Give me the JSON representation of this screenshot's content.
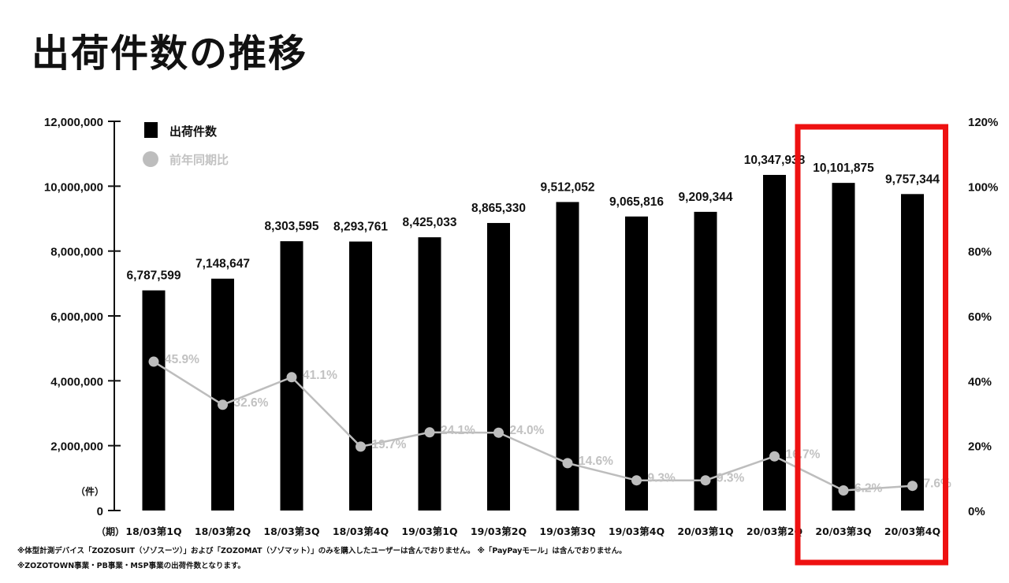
{
  "page": {
    "title": "出荷件数の推移",
    "notes": [
      "※体型計測デバイス「ZOZOSUIT（ゾゾスーツ）」および「ZOZOMAT（ゾゾマット）」のみを購入したユーザーは含んでおりません。 ※「PayPayモール」は含んでおりません。",
      "※ZOZOTOWN事業・PB事業・MSP事業の出荷件数となります。"
    ]
  },
  "chart_data": {
    "type": "bar",
    "title": "出荷件数の推移",
    "categories": [
      "18/03第1Q",
      "18/03第2Q",
      "18/03第3Q",
      "18/03第4Q",
      "19/03第1Q",
      "19/03第2Q",
      "19/03第3Q",
      "19/03第4Q",
      "20/03第1Q",
      "20/03第2Q",
      "20/03第3Q",
      "20/03第4Q"
    ],
    "series": [
      {
        "name": "出荷件数",
        "type": "bar",
        "axis": "left",
        "color": "#000000",
        "values": [
          6787599,
          7148647,
          8303595,
          8293761,
          8425033,
          8865330,
          9512052,
          9065816,
          9209344,
          10347938,
          10101875,
          9757344
        ],
        "labels": [
          "6,787,599",
          "7,148,647",
          "8,303,595",
          "8,293,761",
          "8,425,033",
          "8,865,330",
          "9,512,052",
          "9,065,816",
          "9,209,344",
          "10,347,938",
          "10,101,875",
          "9,757,344"
        ]
      },
      {
        "name": "前年同期比",
        "type": "line",
        "axis": "right",
        "color": "#bdbdbd",
        "values": [
          45.9,
          32.6,
          41.1,
          19.7,
          24.1,
          24.0,
          14.6,
          9.3,
          9.3,
          16.7,
          6.2,
          7.6
        ],
        "labels": [
          "45.9%",
          "32.6%",
          "41.1%",
          "19.7%",
          "24.1%",
          "24.0%",
          "14.6%",
          "9.3%",
          "9.3%",
          "16.7%",
          "6.2%",
          "7.6%"
        ]
      }
    ],
    "y_left": {
      "ylim": [
        0,
        12000000
      ],
      "ticks": [
        "0",
        "2,000,000",
        "4,000,000",
        "6,000,000",
        "8,000,000",
        "10,000,000",
        "12,000,000"
      ],
      "unit_label": "（件）"
    },
    "y_right": {
      "ylim": [
        0,
        120
      ],
      "ticks": [
        "0%",
        "20%",
        "40%",
        "60%",
        "80%",
        "100%",
        "120%"
      ]
    },
    "x_unit_label": "（期）",
    "legend": {
      "position": "top-left"
    },
    "highlight": {
      "from": "20/03第3Q",
      "to": "20/03第4Q",
      "color": "#ee1111"
    },
    "grid": false
  }
}
